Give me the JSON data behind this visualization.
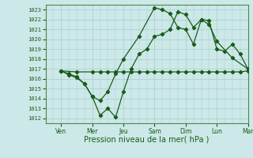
{
  "xlabel": "Pression niveau de la mer( hPa )",
  "ylim": [
    1011.5,
    1023.5
  ],
  "xlim": [
    0,
    13
  ],
  "yticks": [
    1012,
    1013,
    1014,
    1015,
    1016,
    1017,
    1018,
    1019,
    1020,
    1021,
    1022,
    1023
  ],
  "day_labels": [
    "Ven",
    "Mer",
    "Jeu",
    "Sam",
    "Dim",
    "Lun",
    "Mar"
  ],
  "day_positions": [
    1,
    3,
    5,
    7,
    9,
    11,
    13
  ],
  "bg_color": "#cce8e8",
  "grid_color": "#aacccc",
  "line_color": "#1a5c1a",
  "series1_x": [
    1,
    2,
    3,
    3.5,
    4,
    4.5,
    5,
    5.5,
    6,
    6.5,
    7,
    7.5,
    8,
    8.5,
    9,
    9.5,
    10,
    10.5,
    11,
    11.5,
    12,
    12.5,
    13
  ],
  "series1_y": [
    1016.8,
    1016.7,
    1016.7,
    1016.7,
    1016.7,
    1016.7,
    1016.7,
    1016.7,
    1016.7,
    1016.7,
    1016.7,
    1016.7,
    1016.7,
    1016.7,
    1016.7,
    1016.7,
    1016.7,
    1016.7,
    1016.7,
    1016.7,
    1016.7,
    1016.7,
    1016.8
  ],
  "series2_x": [
    1,
    1.5,
    2,
    2.5,
    3,
    3.5,
    4,
    4.5,
    5,
    6,
    7,
    7.5,
    8,
    8.5,
    9,
    9.5,
    10,
    10.5,
    11,
    11.5,
    12,
    12.5,
    13
  ],
  "series2_y": [
    1016.8,
    1016.5,
    1016.2,
    1015.5,
    1014.2,
    1013.8,
    1014.7,
    1016.5,
    1018.0,
    1020.3,
    1023.2,
    1023.0,
    1022.6,
    1021.2,
    1021.0,
    1019.5,
    1022.0,
    1021.9,
    1019.0,
    1018.8,
    1019.5,
    1018.5,
    1017.0
  ],
  "series3_x": [
    1,
    1.5,
    2,
    2.5,
    3,
    3.5,
    4,
    4.5,
    5,
    5.5,
    6,
    6.5,
    7,
    7.5,
    8,
    8.5,
    9,
    9.5,
    10,
    10.5,
    11,
    12,
    13
  ],
  "series3_y": [
    1016.8,
    1016.4,
    1016.1,
    1015.5,
    1014.2,
    1012.3,
    1013.0,
    1012.1,
    1014.7,
    1017.0,
    1018.5,
    1019.0,
    1020.3,
    1020.5,
    1021.0,
    1022.8,
    1022.5,
    1021.2,
    1022.0,
    1021.5,
    1019.8,
    1018.1,
    1017.0
  ],
  "xlabel_fontsize": 7,
  "ytick_fontsize": 5,
  "xtick_fontsize": 5.5
}
